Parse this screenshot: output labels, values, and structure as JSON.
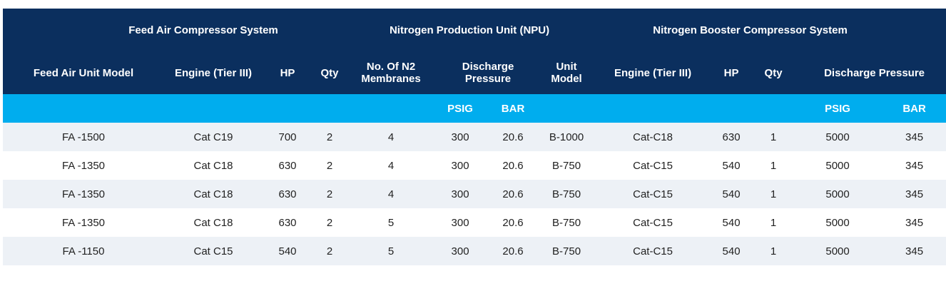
{
  "colors": {
    "header_bg": "#0b2f5e",
    "units_bg": "#00adee",
    "row_alt_bg": "#edf1f6"
  },
  "groups": {
    "feed_air": "Feed Air Compressor System",
    "npu": "Nitrogen Production Unit (NPU)",
    "booster": "Nitrogen Booster Compressor System"
  },
  "columns": {
    "feed_air_unit_model": "Feed Air Unit Model",
    "engine_1": "Engine (Tier III)",
    "hp_1": "HP",
    "qty_1": "Qty",
    "membranes_line1": "No. Of N2",
    "membranes_line2": "Membranes",
    "discharge_line1": "Discharge",
    "discharge_line2": "Pressure",
    "unit_model_line1": "Unit",
    "unit_model_line2": "Model",
    "engine_2": "Engine (Tier III)",
    "hp_2": "HP",
    "qty_2": "Qty",
    "discharge_pressure_2": "Discharge Pressure"
  },
  "units": {
    "psig_1": "PSIG",
    "bar_1": "BAR",
    "psig_2": "PSIG",
    "bar_2": "BAR"
  },
  "rows": [
    [
      "FA -1500",
      "Cat C19",
      "700",
      "2",
      "4",
      "300",
      "20.6",
      "B-1000",
      "Cat-C18",
      "630",
      "1",
      "5000",
      "345"
    ],
    [
      "FA -1350",
      "Cat C18",
      "630",
      "2",
      "4",
      "300",
      "20.6",
      "B-750",
      "Cat-C15",
      "540",
      "1",
      "5000",
      "345"
    ],
    [
      "FA -1350",
      "Cat C18",
      "630",
      "2",
      "4",
      "300",
      "20.6",
      "B-750",
      "Cat-C15",
      "540",
      "1",
      "5000",
      "345"
    ],
    [
      "FA -1350",
      "Cat C18",
      "630",
      "2",
      "5",
      "300",
      "20.6",
      "B-750",
      "Cat-C15",
      "540",
      "1",
      "5000",
      "345"
    ],
    [
      "FA -1150",
      "Cat C15",
      "540",
      "2",
      "5",
      "300",
      "20.6",
      "B-750",
      "Cat-C15",
      "540",
      "1",
      "5000",
      "345"
    ]
  ]
}
